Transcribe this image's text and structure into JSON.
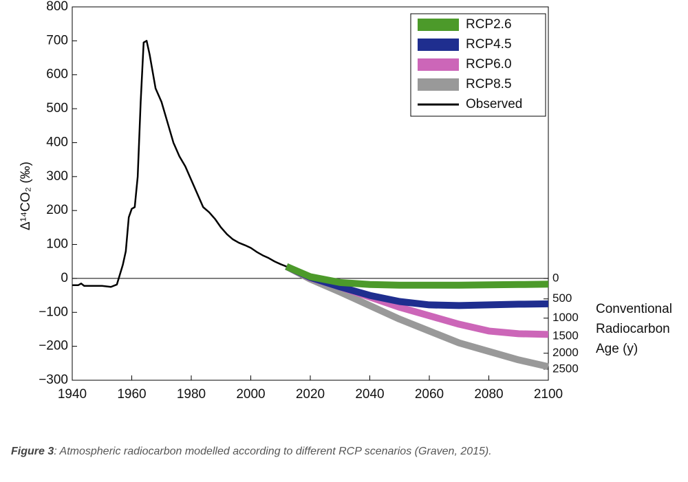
{
  "chart_data": {
    "type": "line",
    "ylabel": "Δ¹⁴CO₂ (‰)",
    "y2label": [
      "Conventional",
      "Radiocarbon",
      "Age (y)"
    ],
    "xlim": [
      1940,
      2100
    ],
    "xticks": [
      1940,
      1960,
      1980,
      2000,
      2020,
      2040,
      2060,
      2080,
      2100
    ],
    "ylim": [
      -300,
      800
    ],
    "yticks": [
      800,
      700,
      600,
      500,
      400,
      300,
      200,
      100,
      0,
      {
        "value": -100,
        "label": "−100"
      },
      {
        "value": -200,
        "label": "−200"
      },
      {
        "value": -300,
        "label": "−300"
      }
    ],
    "y2scale": "radiocarbon age",
    "y2ticks": [
      0,
      500,
      1000,
      1500,
      2000,
      2500
    ],
    "reference_line": 0,
    "legend": "upper right",
    "series": [
      {
        "name": "RCP2.6",
        "color": "#4c9a2a",
        "x": [
          2012,
          2020,
          2030,
          2040,
          2050,
          2060,
          2070,
          2080,
          2090,
          2100
        ],
        "values": [
          35,
          5,
          -12,
          -18,
          -20,
          -20,
          -20,
          -19,
          -18,
          -17
        ]
      },
      {
        "name": "RCP4.5",
        "color": "#1f2e8f",
        "x": [
          2012,
          2020,
          2030,
          2040,
          2050,
          2060,
          2070,
          2080,
          2090,
          2100
        ],
        "values": [
          35,
          3,
          -25,
          -50,
          -68,
          -78,
          -80,
          -78,
          -76,
          -75
        ]
      },
      {
        "name": "RCP6.0",
        "color": "#cc66b8",
        "x": [
          2012,
          2020,
          2030,
          2040,
          2050,
          2060,
          2070,
          2080,
          2090,
          2100
        ],
        "values": [
          35,
          2,
          -25,
          -55,
          -85,
          -110,
          -135,
          -155,
          -163,
          -165
        ]
      },
      {
        "name": "RCP8.5",
        "color": "#999999",
        "x": [
          2012,
          2020,
          2030,
          2040,
          2050,
          2060,
          2070,
          2080,
          2090,
          2100
        ],
        "values": [
          35,
          -2,
          -40,
          -80,
          -120,
          -155,
          -190,
          -215,
          -240,
          -260
        ]
      }
    ],
    "observed": {
      "name": "Observed",
      "color": "#000000",
      "x": [
        1940,
        1942,
        1943,
        1944,
        1950,
        1953,
        1955,
        1957,
        1958,
        1959,
        1960,
        1961,
        1962,
        1963,
        1964,
        1965,
        1966,
        1967,
        1968,
        1970,
        1972,
        1974,
        1976,
        1978,
        1980,
        1982,
        1984,
        1986,
        1988,
        1990,
        1992,
        1994,
        1996,
        1998,
        2000,
        2002,
        2004,
        2006,
        2008,
        2010,
        2012
      ],
      "values": [
        -20,
        -20,
        -15,
        -22,
        -22,
        -25,
        -18,
        40,
        80,
        180,
        205,
        210,
        300,
        520,
        695,
        700,
        660,
        610,
        560,
        520,
        460,
        400,
        360,
        330,
        290,
        250,
        210,
        195,
        175,
        150,
        130,
        115,
        105,
        98,
        90,
        78,
        68,
        60,
        50,
        42,
        35
      ]
    }
  },
  "caption": {
    "label": "Figure 3",
    "text": ": Atmospheric radiocarbon modelled according to different RCP scenarios (Graven, 2015)."
  }
}
